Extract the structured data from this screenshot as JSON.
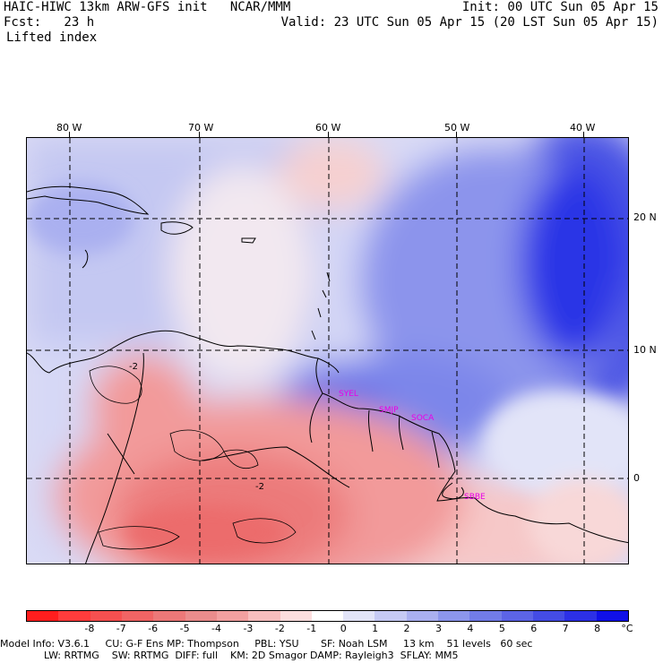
{
  "header": {
    "model_line": "HAIC-HIWC 13km ARW-GFS init   NCAR/MMM",
    "fcst_line": "Fcst:   23 h",
    "field_line": "Lifted index",
    "init_line": "Init: 00 UTC Sun 05 Apr 15",
    "valid_line": "Valid: 23 UTC Sun 05 Apr 15 (20 LST Sun 05 Apr 15)"
  },
  "map": {
    "lon_labels": [
      "80 W",
      "70 W",
      "60 W",
      "50 W",
      "40 W"
    ],
    "lat_labels": [
      "20 N",
      "10 N",
      "0"
    ],
    "stations": [
      "SYEL",
      "SMJP",
      "SOCA",
      "SBBE"
    ],
    "contour_labels": [
      "-2",
      "-2"
    ]
  },
  "colorbar": {
    "colors": [
      "#ff1e1e",
      "#ff3c3c",
      "#f65050",
      "#f06464",
      "#ec7878",
      "#ea8c8c",
      "#f2a0a0",
      "#f8bebe",
      "#fcdede",
      "#ffffff",
      "#e2e4f8",
      "#c6caf4",
      "#aab0f0",
      "#8c96ec",
      "#727ce8",
      "#5c64e6",
      "#444ce4",
      "#2c30e6",
      "#1010e8"
    ],
    "labels": [
      "-8",
      "-7",
      "-6",
      "-5",
      "-4",
      "-3",
      "-2",
      "-1",
      "0",
      "1",
      "2",
      "3",
      "4",
      "5",
      "6",
      "7",
      "8"
    ],
    "unit": "°C"
  },
  "footer": {
    "line1": "Model Info: V3.6.1     CU: G-F Ens MP: Thompson     PBL: YSU       SF: Noah LSM     13 km    51 levels   60 sec",
    "line2": "              LW: RRTMG    SW: RRTMG  DIFF: full    KM: 2D Smagor DAMP: Rayleigh3  SFLAY: MM5"
  }
}
